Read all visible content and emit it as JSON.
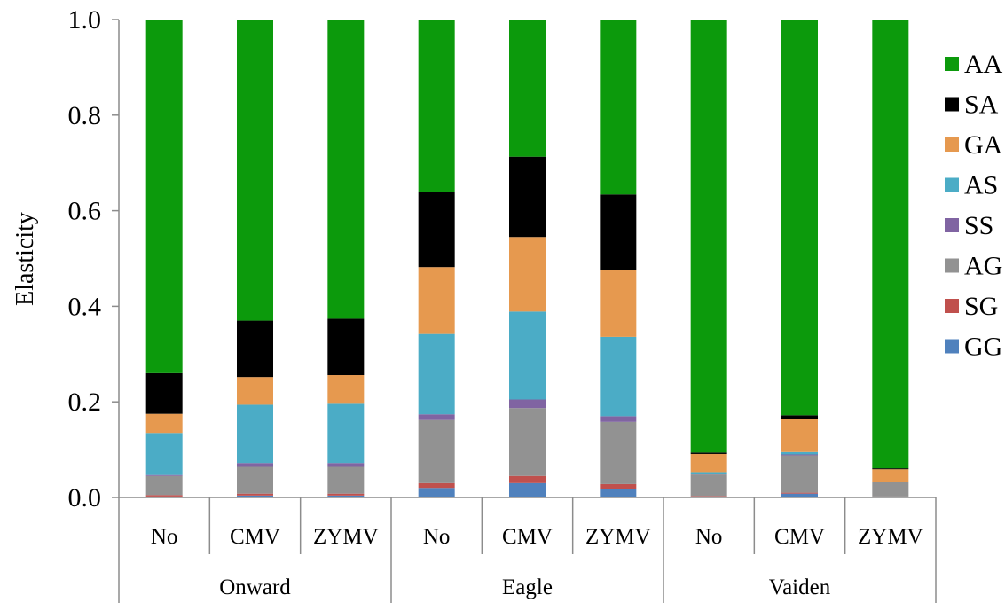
{
  "chart_data": {
    "type": "bar",
    "stacked": true,
    "ylabel": "Elasticity",
    "ylim": [
      0,
      1
    ],
    "yticks": [
      "0.0",
      "0.2",
      "0.4",
      "0.6",
      "0.8",
      "1.0"
    ],
    "groups": [
      {
        "name": "Onward",
        "categories": [
          "No",
          "CMV",
          "ZYMV"
        ]
      },
      {
        "name": "Eagle",
        "categories": [
          "No",
          "CMV",
          "ZYMV"
        ]
      },
      {
        "name": "Vaiden",
        "categories": [
          "No",
          "CMV",
          "ZYMV"
        ]
      }
    ],
    "categories": [
      "No",
      "CMV",
      "ZYMV",
      "No",
      "CMV",
      "ZYMV",
      "No",
      "CMV",
      "ZYMV"
    ],
    "legend_position": "right",
    "series": [
      {
        "name": "GG",
        "color": "#4f81bd",
        "values": [
          0.002,
          0.004,
          0.004,
          0.02,
          0.03,
          0.018,
          0.002,
          0.008,
          0.001
        ]
      },
      {
        "name": "SG",
        "color": "#c0504d",
        "values": [
          0.003,
          0.004,
          0.004,
          0.01,
          0.015,
          0.01,
          0.001,
          0.002,
          0.001
        ]
      },
      {
        "name": "AG",
        "color": "#929292",
        "values": [
          0.04,
          0.056,
          0.056,
          0.132,
          0.142,
          0.13,
          0.045,
          0.078,
          0.03
        ]
      },
      {
        "name": "SS",
        "color": "#8064a2",
        "values": [
          0.002,
          0.008,
          0.008,
          0.012,
          0.018,
          0.012,
          0.001,
          0.002,
          0.0
        ]
      },
      {
        "name": "AS",
        "color": "#4bacc6",
        "values": [
          0.088,
          0.122,
          0.124,
          0.168,
          0.184,
          0.166,
          0.004,
          0.005,
          0.001
        ]
      },
      {
        "name": "GA",
        "color": "#e6994f",
        "values": [
          0.04,
          0.058,
          0.06,
          0.14,
          0.156,
          0.14,
          0.038,
          0.07,
          0.026
        ]
      },
      {
        "name": "SA",
        "color": "#000000",
        "values": [
          0.085,
          0.118,
          0.118,
          0.158,
          0.168,
          0.158,
          0.003,
          0.007,
          0.002
        ]
      },
      {
        "name": "AA",
        "color": "#0c9a0c",
        "values": [
          0.74,
          0.63,
          0.626,
          0.36,
          0.287,
          0.366,
          0.906,
          0.828,
          0.939
        ]
      }
    ],
    "legend_order": [
      "AA",
      "SA",
      "GA",
      "AS",
      "SS",
      "AG",
      "SG",
      "GG"
    ]
  }
}
